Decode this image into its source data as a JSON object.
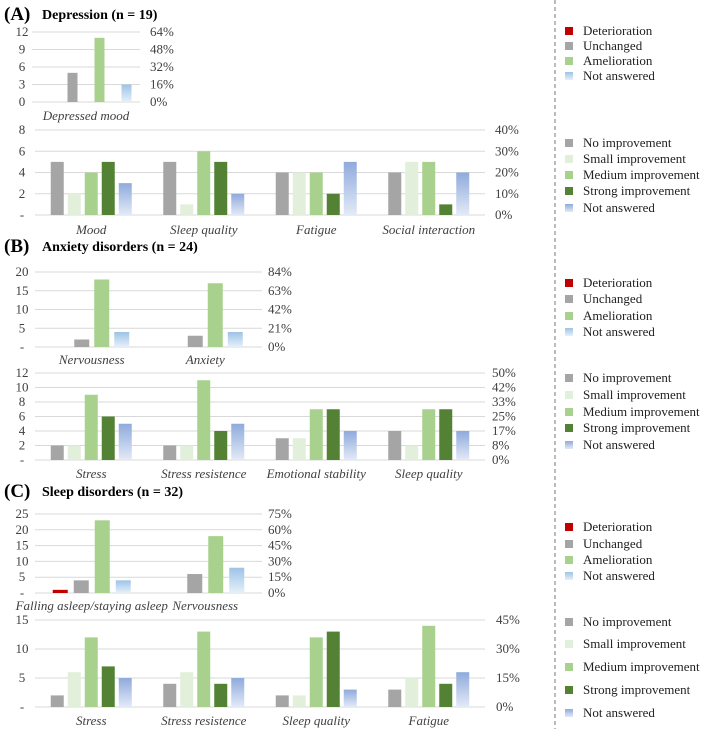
{
  "colors": {
    "deterioration": "#c00000",
    "unchanged": "#a5a5a5",
    "amelioration": "#a9d18e",
    "not_answered_a": "#bdd7ee",
    "no_improvement": "#a5a5a5",
    "small_improvement": "#e2efda",
    "medium_improvement": "#a9d18e",
    "strong_improvement": "#548235",
    "not_answered_b": "#b4c7e7"
  },
  "legend_change": [
    "Deterioration",
    "Unchanged",
    "Amelioration",
    "Not answered"
  ],
  "legend_improvement": [
    "No improvement",
    "Small improvement",
    "Medium improvement",
    "Strong improvement",
    "Not answered"
  ],
  "panels": [
    {
      "letter": "(A)",
      "title": "Depression (n = 19)"
    },
    {
      "letter": "(B)",
      "title": "Anxiety disorders (n = 24)"
    },
    {
      "letter": "(C)",
      "title": "Sleep disorders (n = 32)"
    }
  ],
  "chart_data": [
    {
      "type": "bar",
      "panel": "A",
      "legend": "change",
      "categories": [
        "Depressed mood"
      ],
      "series": [
        {
          "name": "Deterioration",
          "values": [
            0
          ]
        },
        {
          "name": "Unchanged",
          "values": [
            5
          ]
        },
        {
          "name": "Amelioration",
          "values": [
            11
          ]
        },
        {
          "name": "Not answered",
          "values": [
            3
          ]
        }
      ],
      "ylim": [
        0,
        12
      ],
      "left_ticks": [
        "0",
        "3",
        "6",
        "9",
        "12"
      ],
      "right_ticks": [
        "0%",
        "16%",
        "32%",
        "48%",
        "64%"
      ],
      "grid": true
    },
    {
      "type": "bar",
      "panel": "A",
      "legend": "improvement",
      "categories": [
        "Mood",
        "Sleep quality",
        "Fatigue",
        "Social interaction"
      ],
      "series": [
        {
          "name": "No improvement",
          "values": [
            5,
            5,
            4,
            4
          ]
        },
        {
          "name": "Small improvement",
          "values": [
            2,
            1,
            4,
            5
          ]
        },
        {
          "name": "Medium improvement",
          "values": [
            4,
            6,
            4,
            5
          ]
        },
        {
          "name": "Strong improvement",
          "values": [
            5,
            5,
            2,
            1
          ]
        },
        {
          "name": "Not answered",
          "values": [
            3,
            2,
            5,
            4
          ]
        }
      ],
      "ylim": [
        0,
        8
      ],
      "left_ticks": [
        "-",
        "2",
        "4",
        "6",
        "8"
      ],
      "right_ticks": [
        "0%",
        "10%",
        "20%",
        "30%",
        "40%"
      ],
      "grid": true
    },
    {
      "type": "bar",
      "panel": "B",
      "legend": "change",
      "categories": [
        "Nervousness",
        "Anxiety"
      ],
      "series": [
        {
          "name": "Deterioration",
          "values": [
            0,
            0
          ]
        },
        {
          "name": "Unchanged",
          "values": [
            2,
            3
          ]
        },
        {
          "name": "Amelioration",
          "values": [
            18,
            17
          ]
        },
        {
          "name": "Not answered",
          "values": [
            4,
            4
          ]
        }
      ],
      "ylim": [
        0,
        20
      ],
      "left_ticks": [
        "-",
        "5",
        "10",
        "15",
        "20"
      ],
      "right_ticks": [
        "0%",
        "21%",
        "42%",
        "63%",
        "84%"
      ],
      "grid": true
    },
    {
      "type": "bar",
      "panel": "B",
      "legend": "improvement",
      "categories": [
        "Stress",
        "Stress resistence",
        "Emotional stability",
        "Sleep quality"
      ],
      "series": [
        {
          "name": "No improvement",
          "values": [
            2,
            2,
            3,
            4
          ]
        },
        {
          "name": "Small improvement",
          "values": [
            2,
            2,
            3,
            2
          ]
        },
        {
          "name": "Medium improvement",
          "values": [
            9,
            11,
            7,
            7
          ]
        },
        {
          "name": "Strong improvement",
          "values": [
            6,
            4,
            7,
            7
          ]
        },
        {
          "name": "Not answered",
          "values": [
            5,
            5,
            4,
            4
          ]
        }
      ],
      "ylim": [
        0,
        12
      ],
      "left_ticks": [
        "-",
        "2",
        "4",
        "6",
        "8",
        "10",
        "12"
      ],
      "right_ticks": [
        "0%",
        "8%",
        "17%",
        "25%",
        "33%",
        "42%",
        "50%"
      ],
      "grid": true
    },
    {
      "type": "bar",
      "panel": "C",
      "legend": "change",
      "categories": [
        "Falling asleep/staying asleep",
        "Nervousness"
      ],
      "series": [
        {
          "name": "Deterioration",
          "values": [
            1,
            0
          ]
        },
        {
          "name": "Unchanged",
          "values": [
            4,
            6
          ]
        },
        {
          "name": "Amelioration",
          "values": [
            23,
            18
          ]
        },
        {
          "name": "Not answered",
          "values": [
            4,
            8
          ]
        }
      ],
      "ylim": [
        0,
        25
      ],
      "left_ticks": [
        "-",
        "5",
        "10",
        "15",
        "20",
        "25"
      ],
      "right_ticks": [
        "0%",
        "15%",
        "30%",
        "45%",
        "60%",
        "75%"
      ],
      "grid": true
    },
    {
      "type": "bar",
      "panel": "C",
      "legend": "improvement",
      "categories": [
        "Stress",
        "Stress resistence",
        "Sleep quality",
        "Fatigue"
      ],
      "series": [
        {
          "name": "No improvement",
          "values": [
            2,
            4,
            2,
            3
          ]
        },
        {
          "name": "Small improvement",
          "values": [
            6,
            6,
            2,
            5
          ]
        },
        {
          "name": "Medium improvement",
          "values": [
            12,
            13,
            12,
            14
          ]
        },
        {
          "name": "Strong improvement",
          "values": [
            7,
            4,
            13,
            4
          ]
        },
        {
          "name": "Not answered",
          "values": [
            5,
            5,
            3,
            6
          ]
        }
      ],
      "ylim": [
        0,
        15
      ],
      "left_ticks": [
        "-",
        "5",
        "10",
        "15"
      ],
      "right_ticks": [
        "0%",
        "15%",
        "30%",
        "45%"
      ],
      "grid": true
    }
  ]
}
